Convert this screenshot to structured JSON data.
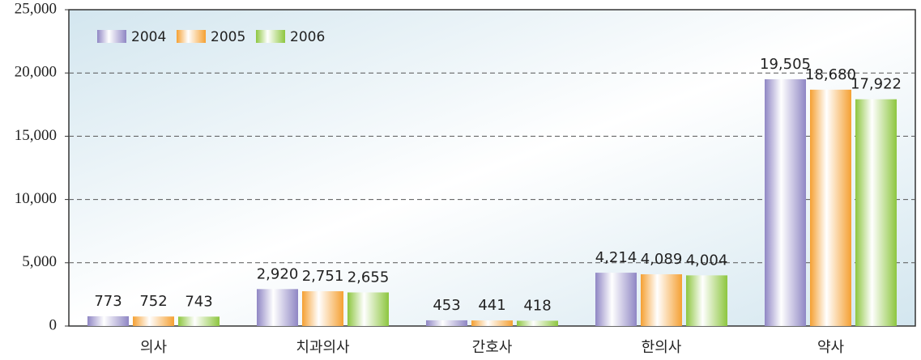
{
  "chart_data": {
    "type": "bar",
    "categories": [
      "의사",
      "치과의사",
      "간호사",
      "한의사",
      "약사"
    ],
    "series": [
      {
        "name": "2004",
        "color": "#8f86c4",
        "values": [
          773,
          2920,
          453,
          4214,
          19505
        ],
        "value_labels": [
          "773",
          "2,920",
          "453",
          "4,214",
          "19,505"
        ]
      },
      {
        "name": "2005",
        "color": "#f5a032",
        "values": [
          752,
          2751,
          441,
          4089,
          18680
        ],
        "value_labels": [
          "752",
          "2,751",
          "441",
          "4,089",
          "18,680"
        ]
      },
      {
        "name": "2006",
        "color": "#8dc63f",
        "values": [
          743,
          2655,
          418,
          4004,
          17922
        ],
        "value_labels": [
          "743",
          "2,655",
          "418",
          "4,004",
          "17,922"
        ]
      }
    ],
    "ylim": [
      0,
      25000
    ],
    "yticks": [
      0,
      {
        "value": 5000,
        "label": "5,000"
      },
      {
        "value": 10000,
        "label": "10,000"
      },
      {
        "value": 15000,
        "label": "15,000"
      },
      {
        "value": 20000,
        "label": "20,000"
      },
      {
        "value": 25000,
        "label": "25,000"
      }
    ],
    "grid": true,
    "legend": "top-left"
  }
}
